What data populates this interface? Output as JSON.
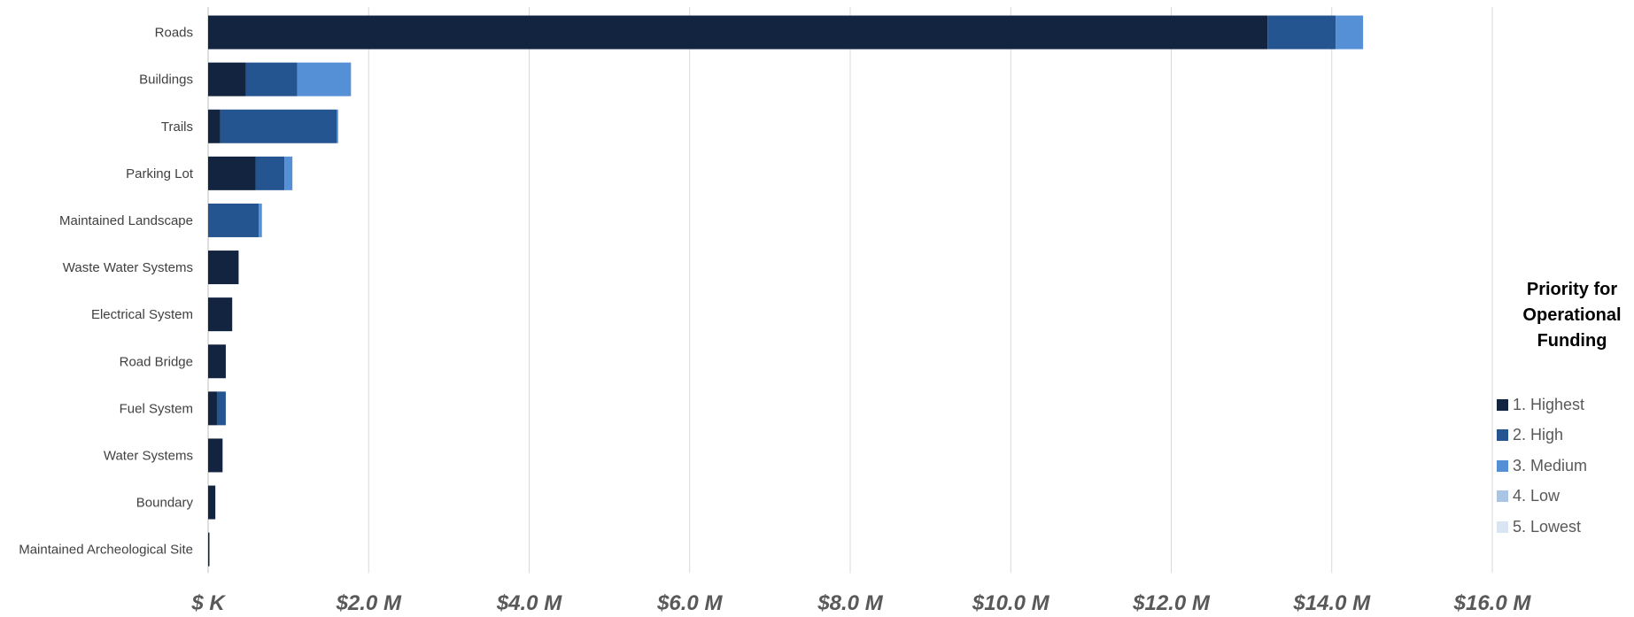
{
  "chart_data": {
    "type": "bar",
    "orientation": "horizontal",
    "stacked": true,
    "categories": [
      "Roads",
      "Buildings",
      "Trails",
      "Parking Lot",
      "Maintained Landscape",
      "Waste Water Systems",
      "Electrical System",
      "Road Bridge",
      "Fuel System",
      "Water Systems",
      "Boundary",
      "Maintained Archeological Site"
    ],
    "series": [
      {
        "name": "1. Highest",
        "color": "#12243f",
        "values": [
          13.2,
          0.47,
          0.15,
          0.59,
          0.0,
          0.38,
          0.3,
          0.22,
          0.11,
          0.18,
          0.09,
          0.01
        ]
      },
      {
        "name": "2. High",
        "color": "#245590",
        "values": [
          0.85,
          0.64,
          1.45,
          0.36,
          0.63,
          0.0,
          0.0,
          0.0,
          0.11,
          0.0,
          0.0,
          0.0
        ]
      },
      {
        "name": "3. Medium",
        "color": "#5590d6",
        "values": [
          0.34,
          0.67,
          0.02,
          0.1,
          0.04,
          0.0,
          0.0,
          0.0,
          0.0,
          0.0,
          0.0,
          0.0
        ]
      },
      {
        "name": "4. Low",
        "color": "#aac4e4",
        "values": [
          0,
          0,
          0,
          0,
          0,
          0,
          0,
          0,
          0,
          0,
          0,
          0
        ]
      },
      {
        "name": "5. Lowest",
        "color": "#dae5f3",
        "values": [
          0,
          0,
          0,
          0,
          0,
          0,
          0,
          0,
          0,
          0,
          0,
          0
        ]
      }
    ],
    "xlim": [
      0,
      16
    ],
    "x_ticks": [
      0,
      2,
      4,
      6,
      8,
      10,
      12,
      14,
      16
    ],
    "x_tick_labels": [
      "$ K",
      "$2.0 M",
      "$4.0 M",
      "$6.0 M",
      "$8.0 M",
      "$10.0 M",
      "$12.0 M",
      "$14.0 M",
      "$16.0 M"
    ],
    "grid": true,
    "legend_position": "right",
    "legend_title": "Priority for Operational Funding"
  }
}
